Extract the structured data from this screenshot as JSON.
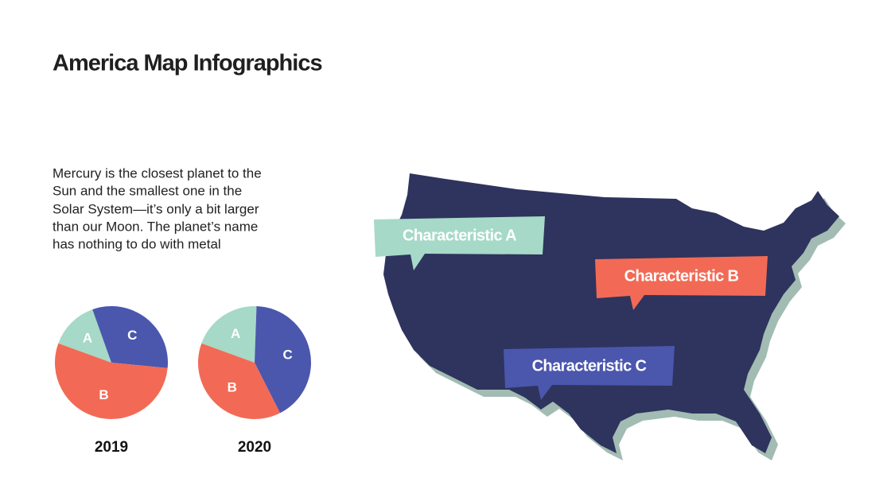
{
  "title": "America Map Infographics",
  "description": [
    "Mercury is the closest planet to the",
    "Sun and the smallest one in the",
    "Solar System—it’s only a bit larger",
    "than our Moon. The planet’s name",
    "has nothing to do with metal"
  ],
  "map_labels": [
    {
      "text": "Characteristic A",
      "color": "#a6d9c7"
    },
    {
      "text": "Characteristic B",
      "color": "#f26a55"
    },
    {
      "text": "Characteristic C",
      "color": "#4b57ad"
    }
  ],
  "chart_data": [
    {
      "type": "pie",
      "title": "2019",
      "categories": [
        "A",
        "C",
        "B"
      ],
      "values": [
        14,
        32,
        54
      ],
      "colors": [
        "#a6d9c7",
        "#4b57ad",
        "#f26a55"
      ]
    },
    {
      "type": "pie",
      "title": "2020",
      "categories": [
        "A",
        "C",
        "B"
      ],
      "values": [
        20,
        42,
        38
      ],
      "colors": [
        "#a6d9c7",
        "#4b57ad",
        "#f26a55"
      ]
    }
  ]
}
